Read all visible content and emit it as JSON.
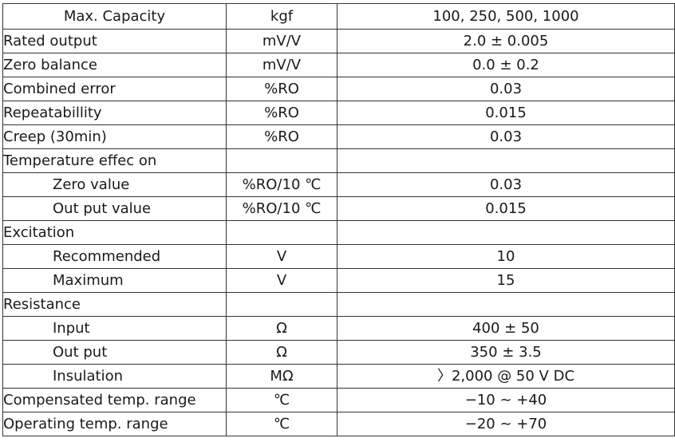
{
  "header": {
    "param": "Max. Capacity",
    "unit": "kgf",
    "value": "100, 250, 500, 1000"
  },
  "rows": [
    {
      "param": "Rated output",
      "unit": "mV/V",
      "value": "2.0 ± 0.005"
    },
    {
      "param": "Zero balance",
      "unit": "mV/V",
      "value": "0.0 ± 0.2"
    },
    {
      "param": "Combined error",
      "unit": "%RO",
      "value": "0.03"
    },
    {
      "param": "Repeatabillity",
      "unit": "%RO",
      "value": "0.015"
    },
    {
      "param": "Creep (30min)",
      "unit": "%RO",
      "value": "0.03"
    },
    {
      "param": "Temperature effec on",
      "unit": "",
      "value": ""
    },
    {
      "param": "Zero value",
      "unit": "%RO/10 ℃",
      "value": "0.03"
    },
    {
      "param": "Out put value",
      "unit": "%RO/10 ℃",
      "value": "0.015"
    },
    {
      "param": "Excitation",
      "unit": "",
      "value": ""
    },
    {
      "param": "Recommended",
      "unit": "V",
      "value": "10"
    },
    {
      "param": "Maximum",
      "unit": "V",
      "value": "15"
    },
    {
      "param": "Resistance",
      "unit": "",
      "value": ""
    },
    {
      "param": "Input",
      "unit": "Ω",
      "value": "400 ± 50"
    },
    {
      "param": "Out put",
      "unit": "Ω",
      "value": "350 ± 3.5"
    },
    {
      "param": "Insulation",
      "unit": "MΩ",
      "value": "〉2,000 @ 50 V DC"
    },
    {
      "param": "Compensated temp. range",
      "unit": "℃",
      "value": "−10 ~ +40"
    },
    {
      "param": "Operating temp. range",
      "unit": "℃",
      "value": "−20 ~ +70"
    }
  ]
}
